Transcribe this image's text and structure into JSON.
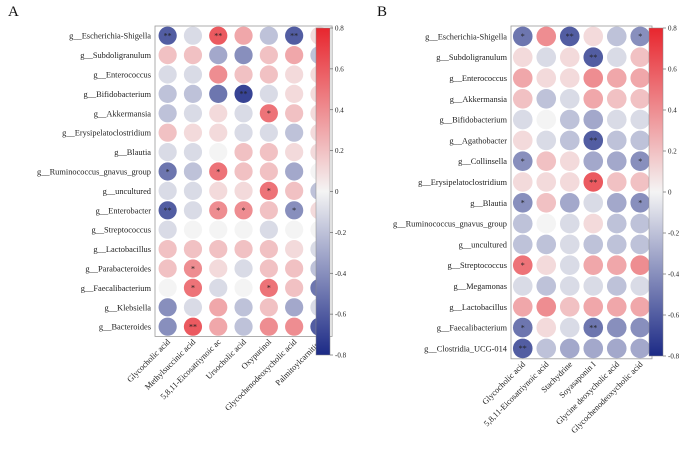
{
  "figure_title": "",
  "colorbar": {
    "ticks": [
      "0.8",
      "0.6",
      "0.4",
      "0.2",
      "0",
      "-0.2",
      "-0.4",
      "-0.6",
      "-0.8"
    ],
    "range": [
      -0.8,
      0.8
    ],
    "low_color": "#1c2a86",
    "mid_color": "#f4f4f4",
    "high_color": "#e8262e"
  },
  "chart_data": [
    {
      "type": "heatmap",
      "panel_label": "A",
      "title": "",
      "rows": [
        "g__Escherichia-Shigella",
        "g__Subdoligranulum",
        "g__Enterococcus",
        "g__Bifidobacterium",
        "g__Akkermansia",
        "g__Erysipelatoclostridium",
        "g__Blautia",
        "g__Ruminococcus_gnavus_group",
        "g__uncultured",
        "g__Enterobacter",
        "g__Streptococcus",
        "g__Lactobacillus",
        "g__Parabacteroides",
        "g__Faecalibacterium",
        "g__Klebsiella",
        "g__Bacteroides"
      ],
      "columns": [
        "Glycocholic acid",
        "Methylsuccinic acid",
        "5,8,11-Eicosatriynoic ac",
        "Ursocholic acid",
        "Oxypurinol",
        "Glycochenodeoxycholic acid",
        "Palmitoylcarnitine"
      ],
      "values": [
        [
          -0.6,
          -0.1,
          0.6,
          0.3,
          -0.2,
          -0.6,
          0.1
        ],
        [
          0.2,
          0.2,
          -0.3,
          -0.4,
          0.2,
          0.3,
          -0.2
        ],
        [
          -0.1,
          -0.1,
          0.4,
          0.2,
          0.2,
          0.1,
          0.1
        ],
        [
          -0.2,
          -0.2,
          -0.5,
          -0.7,
          -0.1,
          0.1,
          0.1
        ],
        [
          -0.2,
          -0.1,
          0.1,
          -0.1,
          0.5,
          0.2,
          0.1
        ],
        [
          0.2,
          0.1,
          0.1,
          -0.1,
          -0.1,
          -0.2,
          0.1
        ],
        [
          -0.1,
          -0.1,
          0.0,
          0.2,
          0.2,
          0.1,
          0.1
        ],
        [
          -0.5,
          -0.2,
          0.5,
          0.2,
          0.2,
          -0.3,
          0.0
        ],
        [
          -0.1,
          -0.1,
          0.1,
          0.1,
          0.5,
          0.2,
          -0.2
        ],
        [
          -0.6,
          -0.1,
          0.4,
          0.4,
          0.2,
          -0.4,
          0.1
        ],
        [
          -0.1,
          0.0,
          0.0,
          0.0,
          -0.1,
          0.0,
          0.0
        ],
        [
          0.2,
          0.2,
          0.2,
          0.2,
          0.2,
          0.1,
          -0.1
        ],
        [
          0.2,
          0.4,
          0.1,
          -0.1,
          0.2,
          0.2,
          -0.2
        ],
        [
          0.0,
          0.5,
          -0.1,
          0.0,
          0.5,
          0.2,
          -0.5
        ],
        [
          -0.4,
          -0.1,
          0.3,
          -0.2,
          0.2,
          -0.3,
          -0.1
        ],
        [
          -0.4,
          0.6,
          0.3,
          -0.2,
          0.4,
          0.4,
          -0.6
        ]
      ],
      "significance": [
        [
          "**",
          "",
          "**",
          "",
          "",
          "**",
          ""
        ],
        [
          "",
          "",
          "",
          "",
          "",
          "",
          ""
        ],
        [
          "",
          "",
          "",
          "",
          "",
          "",
          ""
        ],
        [
          "",
          "",
          "",
          "**",
          "",
          "",
          ""
        ],
        [
          "",
          "",
          "",
          "",
          "*",
          "",
          ""
        ],
        [
          "",
          "",
          "",
          "",
          "",
          "",
          ""
        ],
        [
          "",
          "",
          "",
          "",
          "",
          "",
          ""
        ],
        [
          "*",
          "",
          "*",
          "",
          "",
          "",
          ""
        ],
        [
          "",
          "",
          "",
          "",
          "*",
          "",
          ""
        ],
        [
          "**",
          "",
          "*",
          "*",
          "",
          "*",
          ""
        ],
        [
          "",
          "",
          "",
          "",
          "",
          "",
          ""
        ],
        [
          "",
          "",
          "",
          "",
          "",
          "",
          ""
        ],
        [
          "",
          "*",
          "",
          "",
          "",
          "",
          ""
        ],
        [
          "",
          "*",
          "",
          "",
          "*",
          "",
          "*"
        ],
        [
          "",
          "",
          "",
          "",
          "",
          "",
          ""
        ],
        [
          "",
          "**",
          "",
          "",
          "",
          "",
          "*"
        ]
      ]
    },
    {
      "type": "heatmap",
      "panel_label": "B",
      "title": "",
      "rows": [
        "g__Escherichia-Shigella",
        "g__Subdoligranulum",
        "g__Enterococcus",
        "g__Akkermansia",
        "g__Bifidobacterium",
        "g__Agathobacter",
        "g__Collinsella",
        "g__Erysipelatoclostridium",
        "g__Blautia",
        "g__Ruminococcus_gnavus_group",
        "g__uncultured",
        "g__Streptococcus",
        "g__Megamonas",
        "g__Lactobacillus",
        "g__Faecalibacterium",
        "g__Clostridia_UCG-014"
      ],
      "columns": [
        "Glycocholic acid",
        "5,8,11-Eicosatriynoic acid",
        "Stachydrine",
        "Soyasaponin I",
        "Glycine deoxycholic acid",
        "Glycochenodeoxycholic acid"
      ],
      "values": [
        [
          -0.5,
          0.4,
          -0.6,
          0.1,
          -0.2,
          -0.4
        ],
        [
          0.1,
          -0.1,
          0.1,
          -0.6,
          -0.1,
          0.2
        ],
        [
          0.3,
          0.1,
          0.1,
          0.4,
          0.3,
          0.3
        ],
        [
          0.2,
          -0.2,
          -0.1,
          0.3,
          0.2,
          0.2
        ],
        [
          -0.1,
          0.0,
          -0.2,
          -0.3,
          -0.1,
          -0.1
        ],
        [
          0.1,
          -0.1,
          -0.2,
          -0.6,
          -0.2,
          -0.2
        ],
        [
          -0.4,
          0.2,
          0.1,
          -0.3,
          -0.3,
          -0.4
        ],
        [
          0.1,
          0.1,
          0.1,
          0.6,
          0.2,
          0.2
        ],
        [
          -0.4,
          0.2,
          -0.3,
          -0.1,
          -0.3,
          -0.4
        ],
        [
          -0.2,
          0.0,
          -0.1,
          0.1,
          -0.2,
          -0.2
        ],
        [
          -0.2,
          -0.2,
          -0.1,
          -0.2,
          -0.2,
          -0.2
        ],
        [
          0.5,
          0.1,
          -0.1,
          0.3,
          0.3,
          0.4
        ],
        [
          -0.1,
          -0.2,
          -0.1,
          -0.1,
          -0.2,
          -0.1
        ],
        [
          0.3,
          0.4,
          0.2,
          0.3,
          0.3,
          0.3
        ],
        [
          -0.5,
          0.1,
          -0.1,
          -0.5,
          -0.4,
          -0.4
        ],
        [
          -0.6,
          -0.2,
          -0.3,
          -0.3,
          -0.3,
          -0.3
        ]
      ],
      "significance": [
        [
          "*",
          "",
          "**",
          "",
          "",
          "*"
        ],
        [
          "",
          "",
          "",
          "**",
          "",
          ""
        ],
        [
          "",
          "",
          "",
          "",
          "",
          ""
        ],
        [
          "",
          "",
          "",
          "",
          "",
          ""
        ],
        [
          "",
          "",
          "",
          "",
          "",
          ""
        ],
        [
          "",
          "",
          "",
          "**",
          "",
          ""
        ],
        [
          "*",
          "",
          "",
          "",
          "",
          "*"
        ],
        [
          "",
          "",
          "",
          "**",
          "",
          ""
        ],
        [
          "*",
          "",
          "",
          "",
          "",
          "*"
        ],
        [
          "",
          "",
          "",
          "",
          "",
          ""
        ],
        [
          "",
          "",
          "",
          "",
          "",
          ""
        ],
        [
          "*",
          "",
          "",
          "",
          "",
          ""
        ],
        [
          "",
          "",
          "",
          "",
          "",
          ""
        ],
        [
          "",
          "",
          "",
          "",
          "",
          ""
        ],
        [
          "*",
          "",
          "",
          "**",
          "",
          ""
        ],
        [
          "**",
          "",
          "",
          "",
          "",
          ""
        ]
      ]
    }
  ]
}
